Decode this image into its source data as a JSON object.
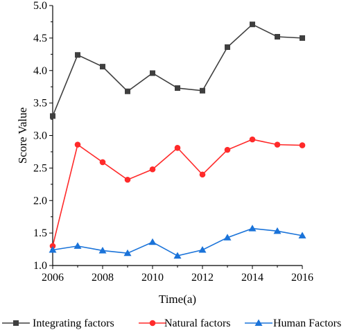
{
  "chart_data": {
    "type": "line",
    "title": "",
    "xlabel": "Time(a)",
    "ylabel": "Score Value",
    "xlim": [
      2006,
      2016
    ],
    "ylim": [
      1.0,
      5.0
    ],
    "xticks": [
      2006,
      2008,
      2010,
      2012,
      2014,
      2016
    ],
    "yticks": [
      1.0,
      1.5,
      2.0,
      2.5,
      3.0,
      3.5,
      4.0,
      4.5,
      5.0
    ],
    "x": [
      2006,
      2007,
      2008,
      2009,
      2010,
      2011,
      2012,
      2013,
      2014,
      2015,
      2016
    ],
    "grid": false,
    "legend_position": "bottom",
    "series": [
      {
        "name": "Integrating factors",
        "color": "#3f3f3f",
        "marker": "square",
        "values": [
          3.3,
          4.24,
          4.06,
          3.68,
          3.96,
          3.73,
          3.69,
          4.36,
          4.71,
          4.52,
          4.5
        ]
      },
      {
        "name": "Natural factors",
        "color": "#ff2a2a",
        "marker": "circle",
        "values": [
          1.3,
          2.86,
          2.59,
          2.32,
          2.48,
          2.81,
          2.4,
          2.78,
          2.94,
          2.86,
          2.85
        ]
      },
      {
        "name": "Human Factors",
        "color": "#1a73d9",
        "marker": "triangle",
        "values": [
          1.24,
          1.3,
          1.23,
          1.19,
          1.36,
          1.15,
          1.24,
          1.43,
          1.57,
          1.53,
          1.46
        ]
      }
    ]
  }
}
